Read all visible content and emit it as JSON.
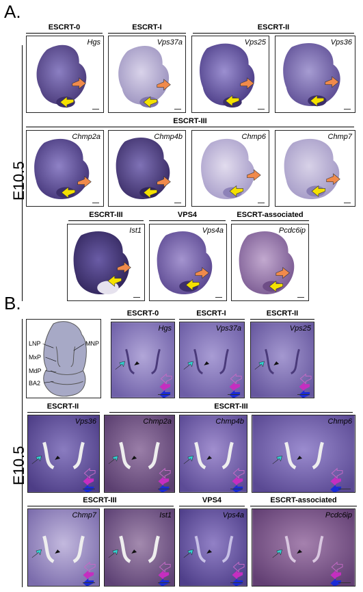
{
  "panels": {
    "a": {
      "label": "A.",
      "age": "E10.5",
      "groups": [
        "ESCRT-0",
        "ESCRT-I",
        "ESCRT-II",
        "ESCRT-III",
        "ESCRT-III",
        "VPS4",
        "ESCRT-associated"
      ],
      "genes": [
        "Hgs",
        "Vps37a",
        "Vps25",
        "Vps36",
        "Chmp2a",
        "Chmp4b",
        "Chmp6",
        "Chmp7",
        "Ist1",
        "Vps4a",
        "Pcdc6ip"
      ]
    },
    "b": {
      "label": "B.",
      "age": "E10.5",
      "groups": [
        "ESCRT-0",
        "ESCRT-I",
        "ESCRT-II",
        "ESCRT-II",
        "ESCRT-III",
        "ESCRT-III",
        "VPS4",
        "ESCRT-associated"
      ],
      "genes": [
        "Hgs",
        "Vps37a",
        "Vps25",
        "Vps36",
        "Chmp2a",
        "Chmp4b",
        "Chmp6",
        "Chmp7",
        "Ist1",
        "Vps4a",
        "Pcdc6ip"
      ],
      "anatomy": [
        "LNP",
        "MNP",
        "MxP",
        "MdP",
        "BA2"
      ]
    }
  },
  "colors": {
    "stain_dark": "#4a3a7a",
    "stain_light": "#b9aedb",
    "arrow_orange": "#f08a4b",
    "arrow_yellow": "#f5e100",
    "arrow_cyan": "#33d1d1",
    "arrow_magenta": "#c52ec0",
    "arrow_pink_outline": "#c46ac6",
    "arrow_blue": "#1a2bd6",
    "arrowhead_black": "#111111"
  }
}
